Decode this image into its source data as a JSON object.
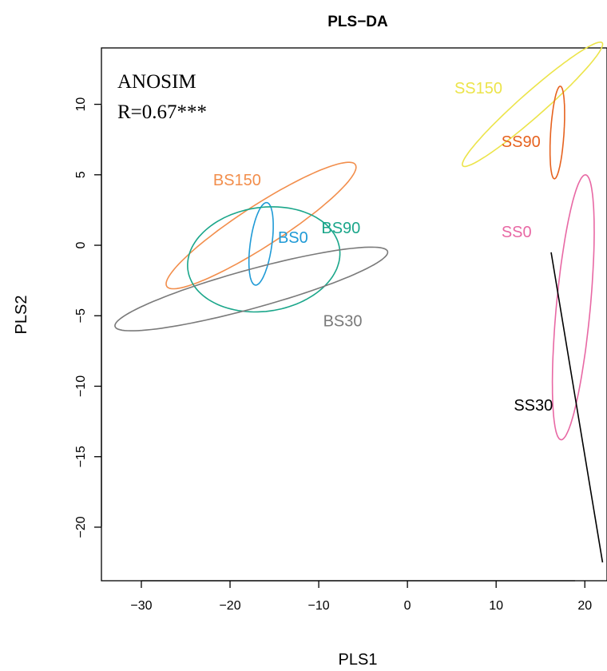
{
  "chart_data": {
    "type": "scatter",
    "title": "PLS−DA",
    "xlabel": "PLS1",
    "ylabel": "PLS2",
    "xlim": [
      -34.5,
      22.5
    ],
    "ylim": [
      -23.8,
      14.0
    ],
    "xticks": [
      -30,
      -20,
      -10,
      0,
      10,
      20
    ],
    "xtick_labels": [
      "−30",
      "−20",
      "−10",
      "0",
      "10",
      "20"
    ],
    "yticks": [
      -20,
      -15,
      -10,
      -5,
      0,
      5,
      10
    ],
    "ytick_labels": [
      "−20",
      "−15",
      "−10",
      "−5",
      "0",
      "5",
      "10"
    ],
    "annotations": [
      "ANOSIM",
      "R=0.67***"
    ],
    "ellipses": [
      {
        "label": "BS150",
        "color": "#f28e4c",
        "center": [
          -16.5,
          1.4
        ],
        "a": 11.5,
        "b": 1.6,
        "angle_deg": 21.6,
        "label_pos": [
          -19.2,
          4.6
        ]
      },
      {
        "label": "BS0",
        "color": "#1f9ad6",
        "center": [
          -16.5,
          0.1
        ],
        "a": 3.0,
        "b": 1.2,
        "angle_deg": 76.0,
        "label_pos": [
          -12.9,
          0.5
        ]
      },
      {
        "label": "BS90",
        "color": "#1aa68a",
        "center": [
          -16.2,
          -1.0
        ],
        "a": 8.6,
        "b": 3.7,
        "angle_deg": 3.4,
        "label_pos": [
          -7.5,
          1.2
        ]
      },
      {
        "label": "BS30",
        "color": "#7a7a7a",
        "center": [
          -17.6,
          -3.1
        ],
        "a": 15.6,
        "b": 1.4,
        "angle_deg": 9.7,
        "label_pos": [
          -7.3,
          -5.4
        ]
      },
      {
        "label": "SS150",
        "color": "#ece44a",
        "center": [
          14.1,
          10.0
        ],
        "a": 9.0,
        "b": 1.0,
        "angle_deg": 28.7,
        "label_pos": [
          8.0,
          11.1
        ]
      },
      {
        "label": "SS90",
        "color": "#e6621f",
        "center": [
          16.9,
          8.0
        ],
        "a": 3.3,
        "b": 0.75,
        "angle_deg": 84.0,
        "label_pos": [
          12.8,
          7.3
        ]
      },
      {
        "label": "SS0",
        "color": "#e868a4",
        "center": [
          18.7,
          -4.4
        ],
        "a": 9.5,
        "b": 1.9,
        "angle_deg": 81.4,
        "label_pos": [
          12.3,
          0.9
        ]
      }
    ],
    "segments": [
      {
        "label": "SS30",
        "color": "#000000",
        "from": [
          16.2,
          -0.5
        ],
        "to": [
          22.0,
          -22.5
        ],
        "label_pos": [
          14.2,
          -11.4
        ]
      }
    ]
  }
}
